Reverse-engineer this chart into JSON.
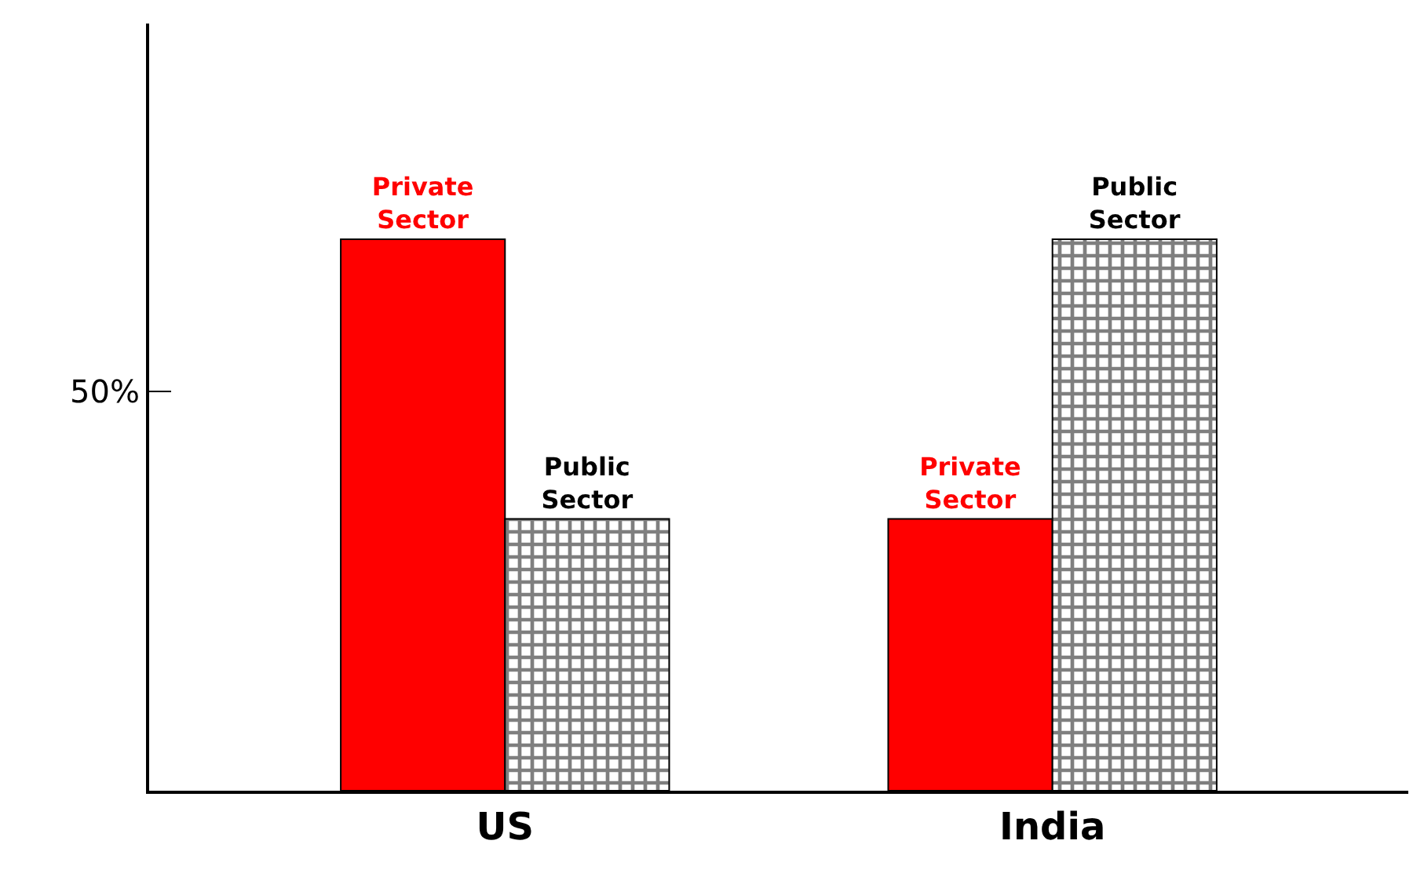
{
  "chart_data": {
    "type": "bar",
    "categories": [
      "US",
      "India"
    ],
    "series": [
      {
        "name": "Private Sector",
        "color": "#ff0000",
        "values": [
          69,
          34
        ]
      },
      {
        "name": "Public Sector",
        "color": "#000000",
        "values": [
          34,
          69
        ]
      }
    ],
    "ylim": [
      0,
      96
    ],
    "yticks": [
      {
        "value": 50,
        "label": "50%"
      }
    ],
    "legend": false
  }
}
